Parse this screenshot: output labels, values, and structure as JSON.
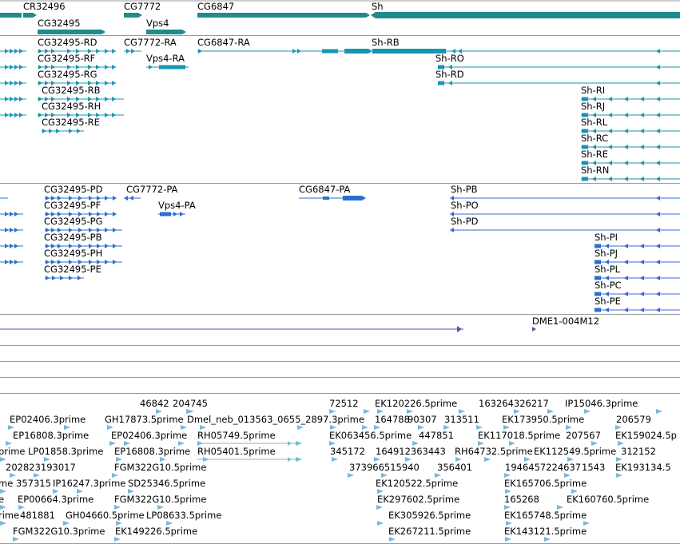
{
  "colors": {
    "gene": "#1e8c8c",
    "transcript": "#1597b3",
    "protein": "#2d6fcf",
    "repeat": "#6a4aa8",
    "est": "#78b8dd",
    "separator": "#9a9a9a"
  },
  "genes": {
    "labels": [
      "CR32496",
      "CG7772",
      "CG6847",
      "Sh",
      "CG32495",
      "Vps4"
    ]
  },
  "transcripts": {
    "labels": [
      "CG32495-RD",
      "CG7772-RA",
      "CG6847-RA",
      "Sh-RB",
      "CG32495-RF",
      "Vps4-RA",
      "Sh-RO",
      "CG32495-RG",
      "Sh-RD",
      "CG32495-RB",
      "Sh-RI",
      "CG32495-RH",
      "Sh-RJ",
      "CG32495-RE",
      "Sh-RL",
      "Sh-RC",
      "Sh-RE",
      "Sh-RN"
    ]
  },
  "proteins": {
    "labels": [
      "CG32495-PD",
      "CG7772-PA",
      "CG6847-PA",
      "Sh-PB",
      "CG32495-PF",
      "Vps4-PA",
      "Sh-PO",
      "CG32495-PG",
      "Sh-PD",
      "CG32495-PB",
      "Sh-PI",
      "CG32495-PH",
      "Sh-PJ",
      "CG32495-PE",
      "Sh-PL",
      "Sh-PC",
      "Sh-PE"
    ]
  },
  "repeats": {
    "labels": [
      "DME1-004M12"
    ]
  },
  "ests": {
    "labels": [
      "46842",
      "204745",
      "72512",
      "EK120226.5prime",
      "163264326217",
      "IP15046.3prime",
      "EP02406.3prime",
      "GH17873.5prime",
      "Dmel_neb_013563_0655_2897.3prime",
      "164788",
      "90307",
      "313511",
      "EK173950.5prime",
      "206579",
      "EP16808.3prime",
      "EP02406.3prime",
      "RH05749.5prime",
      "EK063456.5prime",
      "447851",
      "EK117018.5prime",
      "207567",
      "EK159024.5p",
      "prime",
      "LP01858.3prime",
      "EP16808.3prime",
      "RH05401.5prime",
      "345172",
      "164912363443",
      "RH64732.5prime",
      "EK112549.5prime",
      "312152",
      "202823193017",
      "FGM322G10.5prime",
      "373966515940",
      "356401",
      "1946457224637",
      "1543",
      "EK193134.5",
      "me",
      "357315",
      "IP16247.3prime",
      "SD25346.5prime",
      "EK120522.5prime",
      "EK165706.5prime",
      "e",
      "EP00664.3prime",
      "FGM322G10.5prime",
      "EK297602.5prime",
      "165268",
      "EK160760.5prime",
      "rime",
      "481881",
      "GH04660.5prime",
      "LP08633.5prime",
      "EK305926.5prime",
      "EK165748.5prime",
      "FGM322G10.3prime",
      "EK149226.5prime",
      "EK267211.5prime",
      "EK143121.5prime"
    ]
  }
}
